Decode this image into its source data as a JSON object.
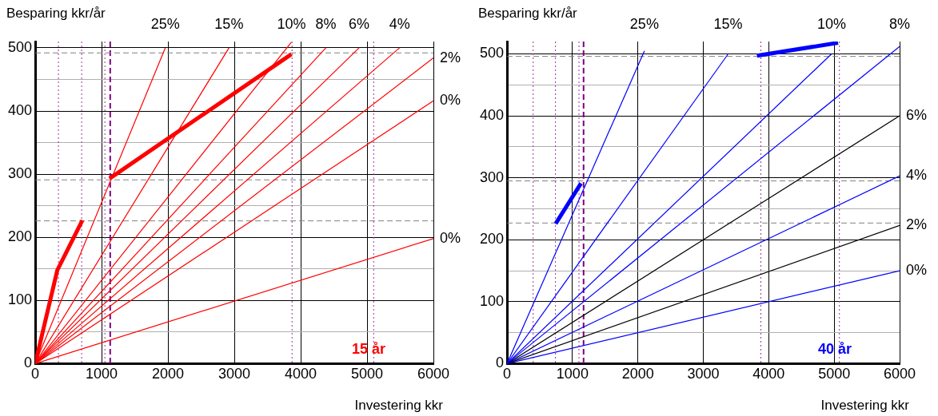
{
  "chart_data": [
    {
      "type": "line",
      "xlabel": "Investering kkr",
      "ylabel": "Besparing kkr/år",
      "xlim": [
        0,
        6000
      ],
      "xticks": [
        0,
        1000,
        2000,
        3000,
        4000,
        5000,
        6000
      ],
      "ylim": [
        0,
        510
      ],
      "yticks": [
        0,
        {
          "value": 50,
          "label": null
        },
        100,
        {
          "value": 150,
          "label": null
        },
        200,
        {
          "value": 250,
          "label": null
        },
        300,
        {
          "value": 350,
          "label": null
        },
        400,
        {
          "value": 450,
          "label": null
        },
        500
      ],
      "grid": true,
      "legend": false,
      "marker": "none",
      "annotations": [
        "15 år"
      ],
      "ref_lines": [
        {
          "axis": "x",
          "value": 350,
          "color": "#993399",
          "line_style": "dotted"
        },
        {
          "axis": "x",
          "value": 700,
          "color": "#993399",
          "line_style": "dotted"
        },
        {
          "axis": "x",
          "value": 1050,
          "color": "#993399",
          "line_style": "dotted"
        },
        {
          "axis": "x",
          "value": 1130,
          "color": "#800080",
          "line_style": "dashed"
        },
        {
          "axis": "x",
          "value": 3870,
          "color": "#993399",
          "line_style": "dotted"
        },
        {
          "axis": "x",
          "value": 5100,
          "color": "#993399",
          "line_style": "dotted"
        },
        {
          "axis": "y",
          "value": 492,
          "color": "#808080",
          "line_style": "dashed"
        },
        {
          "axis": "y",
          "value": 291,
          "color": "#808080",
          "line_style": "dashed"
        },
        {
          "axis": "y",
          "value": 226,
          "color": "#808080",
          "line_style": "dashed"
        }
      ],
      "series": [
        {
          "name": "25%",
          "color": "#ff0000",
          "x": [
            0,
            1960
          ],
          "values": [
            0,
            500
          ]
        },
        {
          "name": "15%",
          "color": "#ff0000",
          "x": [
            0,
            2920
          ],
          "values": [
            0,
            500
          ]
        },
        {
          "name": "10%",
          "color": "#ff0000",
          "x": [
            0,
            3860
          ],
          "values": [
            0,
            509
          ]
        },
        {
          "name": "8%",
          "color": "#ff0000",
          "x": [
            0,
            4380
          ],
          "values": [
            0,
            500
          ]
        },
        {
          "name": "6%",
          "color": "#ff0000",
          "x": [
            0,
            4880
          ],
          "values": [
            0,
            500
          ]
        },
        {
          "name": "4%",
          "color": "#ff0000",
          "x": [
            0,
            5490
          ],
          "values": [
            0,
            500
          ]
        },
        {
          "name": "2%",
          "color": "#ff0000",
          "x": [
            0,
            6000
          ],
          "values": [
            0,
            484
          ]
        },
        {
          "name": "0%",
          "color": "#ff0000",
          "x": [
            0,
            6000
          ],
          "values": [
            0,
            416
          ]
        },
        {
          "name": "0%",
          "color": "#ff0000",
          "x": [
            0,
            6000
          ],
          "values": [
            0,
            198
          ]
        },
        {
          "color": "#ff0000",
          "x": [
            1120,
            3860
          ],
          "values": [
            293,
            490
          ]
        },
        {
          "color": "#ff0000",
          "x": [
            0,
            333,
            711
          ],
          "values": [
            0,
            148,
            227
          ]
        }
      ]
    },
    {
      "type": "line",
      "xlabel": "Investering kkr",
      "ylabel": "Besparing kkr/år",
      "xlim": [
        0,
        6000
      ],
      "xticks": [
        0,
        1000,
        2000,
        3000,
        4000,
        5000,
        6000
      ],
      "ylim": [
        0,
        520
      ],
      "yticks": [
        0,
        {
          "value": 50,
          "label": null
        },
        100,
        {
          "value": 150,
          "label": null
        },
        200,
        {
          "value": 250,
          "label": null
        },
        300,
        {
          "value": 350,
          "label": null
        },
        400,
        {
          "value": 450,
          "label": null
        },
        500
      ],
      "grid": true,
      "legend": false,
      "marker": "none",
      "annotations": [
        "40 år"
      ],
      "ref_lines": [
        {
          "axis": "x",
          "value": 400,
          "color": "#993399",
          "line_style": "dotted"
        },
        {
          "axis": "x",
          "value": 740,
          "color": "#993399",
          "line_style": "dotted"
        },
        {
          "axis": "x",
          "value": 1100,
          "color": "#993399",
          "line_style": "dotted"
        },
        {
          "axis": "x",
          "value": 1170,
          "color": "#800080",
          "line_style": "dashed"
        },
        {
          "axis": "x",
          "value": 3880,
          "color": "#993399",
          "line_style": "dotted"
        },
        {
          "axis": "x",
          "value": 5080,
          "color": "#993399",
          "line_style": "dotted"
        },
        {
          "axis": "y",
          "value": 496,
          "color": "#808080",
          "line_style": "dashed"
        },
        {
          "axis": "y",
          "value": 295,
          "color": "#808080",
          "line_style": "dashed"
        },
        {
          "axis": "y",
          "value": 227,
          "color": "#808080",
          "line_style": "dashed"
        }
      ],
      "series": [
        {
          "name": "25%",
          "color": "#0000ff",
          "x": [
            0,
            2100
          ],
          "values": [
            0,
            505
          ]
        },
        {
          "name": "15%",
          "color": "#0000ff",
          "x": [
            0,
            3380
          ],
          "values": [
            0,
            500
          ]
        },
        {
          "name": "10%",
          "color": "#0000ff",
          "x": [
            0,
            4960
          ],
          "values": [
            0,
            500
          ]
        },
        {
          "name": "8%",
          "color": "#0000ff",
          "x": [
            0,
            6000
          ],
          "values": [
            0,
            512
          ]
        },
        {
          "name": "6%",
          "color": "#000000",
          "x": [
            0,
            6000
          ],
          "values": [
            0,
            400
          ]
        },
        {
          "name": "4%",
          "color": "#0000ff",
          "x": [
            0,
            6000
          ],
          "values": [
            0,
            303
          ]
        },
        {
          "name": "2%",
          "color": "#000000",
          "x": [
            0,
            6000
          ],
          "values": [
            0,
            223
          ]
        },
        {
          "name": "0%",
          "color": "#0000ff",
          "x": [
            0,
            6000
          ],
          "values": [
            0,
            150
          ]
        },
        {
          "color": "#0000ff",
          "x": [
            3820,
            5060
          ],
          "values": [
            497,
            518
          ]
        },
        {
          "color": "#0000ff",
          "x": [
            744,
            1130
          ],
          "values": [
            226,
            291
          ]
        }
      ]
    }
  ]
}
